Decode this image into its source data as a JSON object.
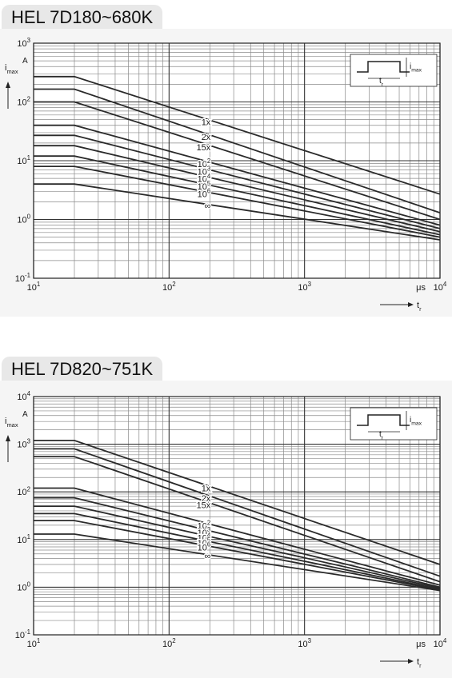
{
  "chart_data": [
    {
      "type": "line",
      "title": "HEL 7D180~680K",
      "x_scale": "log",
      "y_scale": "log",
      "xlim": [
        10,
        10000
      ],
      "ylim": [
        0.1,
        1000
      ],
      "x_ticks": [
        {
          "value": 10,
          "base": "10",
          "exp": "1"
        },
        {
          "value": 100,
          "base": "10",
          "exp": "2"
        },
        {
          "value": 1000,
          "base": "10",
          "exp": "3"
        },
        {
          "value": 10000,
          "base": "10",
          "exp": "4"
        }
      ],
      "y_ticks": [
        {
          "value": 0.1,
          "base": "10",
          "exp": "-1"
        },
        {
          "value": 1,
          "base": "10",
          "exp": "0"
        },
        {
          "value": 10,
          "base": "10",
          "exp": "1"
        },
        {
          "value": 100,
          "base": "10",
          "exp": "2"
        },
        {
          "value": 1000,
          "base": "10",
          "exp": "3"
        }
      ],
      "x_unit": "μs",
      "x_axis_symbol": {
        "main": "t",
        "sub": "r"
      },
      "y_axis_symbol": {
        "main": "i",
        "sub": "max"
      },
      "y_unit": "A",
      "inset": {
        "pulse_label": {
          "main": "t",
          "sub": "r"
        },
        "amp_label": {
          "main": "i",
          "sub": "max"
        }
      },
      "grid": true,
      "series": [
        {
          "name": "1x",
          "label": {
            "base": "1x",
            "exp": ""
          },
          "x": [
            10,
            20,
            10000
          ],
          "y": [
            270,
            270,
            2.7
          ]
        },
        {
          "name": "2x",
          "label": {
            "base": "2x",
            "exp": ""
          },
          "x": [
            10,
            20,
            10000
          ],
          "y": [
            165,
            165,
            1.3
          ]
        },
        {
          "name": "15x",
          "label": {
            "base": "15x",
            "exp": ""
          },
          "x": [
            10,
            20,
            10000
          ],
          "y": [
            100,
            100,
            1.0
          ]
        },
        {
          "name": "10^2",
          "label": {
            "base": "10",
            "exp": "2"
          },
          "x": [
            10,
            20,
            10000
          ],
          "y": [
            40,
            40,
            0.8
          ]
        },
        {
          "name": "10^3",
          "label": {
            "base": "10",
            "exp": "3"
          },
          "x": [
            10,
            20,
            10000
          ],
          "y": [
            27,
            27,
            0.7
          ]
        },
        {
          "name": "10^4",
          "label": {
            "base": "10",
            "exp": "4"
          },
          "x": [
            10,
            20,
            10000
          ],
          "y": [
            18,
            18,
            0.62
          ]
        },
        {
          "name": "10^5",
          "label": {
            "base": "10",
            "exp": "5"
          },
          "x": [
            10,
            20,
            10000
          ],
          "y": [
            12,
            12,
            0.55
          ]
        },
        {
          "name": "10^6",
          "label": {
            "base": "10",
            "exp": "6"
          },
          "x": [
            10,
            20,
            10000
          ],
          "y": [
            8,
            8,
            0.5
          ]
        },
        {
          "name": "∞",
          "label": {
            "base": "∞",
            "exp": ""
          },
          "x": [
            10,
            20,
            10000
          ],
          "y": [
            4,
            4,
            0.45
          ]
        }
      ]
    },
    {
      "type": "line",
      "title": "HEL 7D820~751K",
      "x_scale": "log",
      "y_scale": "log",
      "xlim": [
        10,
        10000
      ],
      "ylim": [
        0.1,
        10000
      ],
      "x_ticks": [
        {
          "value": 10,
          "base": "10",
          "exp": "1"
        },
        {
          "value": 100,
          "base": "10",
          "exp": "2"
        },
        {
          "value": 1000,
          "base": "10",
          "exp": "3"
        },
        {
          "value": 10000,
          "base": "10",
          "exp": "4"
        }
      ],
      "y_ticks": [
        {
          "value": 0.1,
          "base": "10",
          "exp": "-1"
        },
        {
          "value": 1,
          "base": "10",
          "exp": "0"
        },
        {
          "value": 10,
          "base": "10",
          "exp": "1"
        },
        {
          "value": 100,
          "base": "10",
          "exp": "2"
        },
        {
          "value": 1000,
          "base": "10",
          "exp": "3"
        },
        {
          "value": 10000,
          "base": "10",
          "exp": "4"
        }
      ],
      "x_unit": "μs",
      "x_axis_symbol": {
        "main": "t",
        "sub": "r"
      },
      "y_axis_symbol": {
        "main": "i",
        "sub": "max"
      },
      "y_unit": "A",
      "inset": {
        "pulse_label": {
          "main": "t",
          "sub": "r"
        },
        "amp_label": {
          "main": "i",
          "sub": "max"
        }
      },
      "grid": true,
      "series": [
        {
          "name": "1x",
          "label": {
            "base": "1x",
            "exp": ""
          },
          "x": [
            10,
            20,
            10000
          ],
          "y": [
            1200,
            1200,
            3.0
          ]
        },
        {
          "name": "2x",
          "label": {
            "base": "2x",
            "exp": ""
          },
          "x": [
            10,
            20,
            10000
          ],
          "y": [
            800,
            800,
            1.7
          ]
        },
        {
          "name": "15x",
          "label": {
            "base": "15x",
            "exp": ""
          },
          "x": [
            10,
            20,
            10000
          ],
          "y": [
            550,
            550,
            1.3
          ]
        },
        {
          "name": "10^2",
          "label": {
            "base": "10",
            "exp": "2"
          },
          "x": [
            10,
            20,
            10000
          ],
          "y": [
            120,
            120,
            1.1
          ]
        },
        {
          "name": "10^3",
          "label": {
            "base": "10",
            "exp": "3"
          },
          "x": [
            10,
            20,
            10000
          ],
          "y": [
            75,
            75,
            1.0
          ]
        },
        {
          "name": "10^4",
          "label": {
            "base": "10",
            "exp": "4"
          },
          "x": [
            10,
            20,
            10000
          ],
          "y": [
            50,
            50,
            0.95
          ]
        },
        {
          "name": "10^5",
          "label": {
            "base": "10",
            "exp": "5"
          },
          "x": [
            10,
            20,
            10000
          ],
          "y": [
            35,
            35,
            0.9
          ]
        },
        {
          "name": "10^6",
          "label": {
            "base": "10",
            "exp": "6"
          },
          "x": [
            10,
            20,
            10000
          ],
          "y": [
            25,
            25,
            0.87
          ]
        },
        {
          "name": "∞",
          "label": {
            "base": "∞",
            "exp": ""
          },
          "x": [
            10,
            20,
            10000
          ],
          "y": [
            13,
            13,
            0.85
          ]
        }
      ]
    }
  ]
}
